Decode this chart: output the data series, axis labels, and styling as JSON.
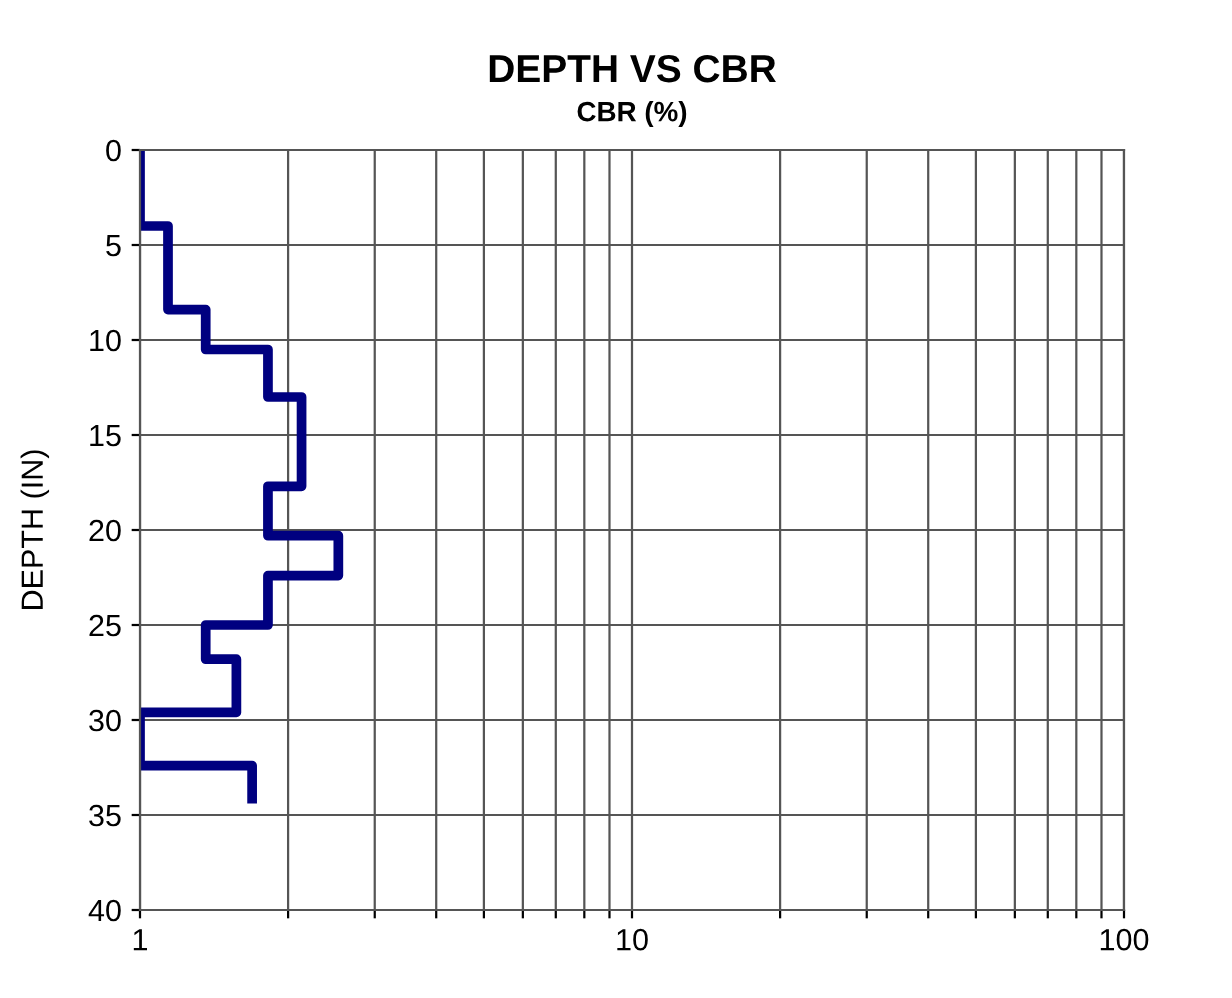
{
  "chart_data": {
    "type": "line",
    "title": "DEPTH VS CBR",
    "xlabel": "CBR (%)",
    "ylabel": "DEPTH (IN)",
    "log": "x",
    "grid": true,
    "marker": "none",
    "line_style": "solid",
    "xlim": [
      1,
      100
    ],
    "xticks": [
      1,
      {
        "value": 2,
        "label": null
      },
      {
        "value": 3,
        "label": null
      },
      {
        "value": 4,
        "label": null
      },
      {
        "value": 5,
        "label": null
      },
      {
        "value": 6,
        "label": null
      },
      {
        "value": 7,
        "label": null
      },
      {
        "value": 8,
        "label": null
      },
      {
        "value": 9,
        "label": null
      },
      10,
      {
        "value": 20,
        "label": null
      },
      {
        "value": 30,
        "label": null
      },
      {
        "value": 40,
        "label": null
      },
      {
        "value": 50,
        "label": null
      },
      {
        "value": 60,
        "label": null
      },
      {
        "value": 70,
        "label": null
      },
      {
        "value": 80,
        "label": null
      },
      {
        "value": 90,
        "label": null
      },
      100
    ],
    "ylim": [
      40,
      0
    ],
    "yticks": [
      0,
      5,
      10,
      15,
      20,
      25,
      30,
      35,
      40
    ],
    "series": [
      {
        "color": "#000080",
        "x": [
          1,
          1,
          1.14,
          1.14,
          1.36,
          1.36,
          1.82,
          1.82,
          2.13,
          2.13,
          1.82,
          1.82,
          2.53,
          2.53,
          1.82,
          1.82,
          1.36,
          1.36,
          1.57,
          1.57,
          1,
          1,
          1.69,
          1.69
        ],
        "values": [
          0,
          4,
          4,
          8.4,
          8.4,
          10.5,
          10.5,
          13,
          13,
          17.7,
          17.7,
          20.3,
          20.3,
          22.4,
          22.4,
          25,
          25,
          26.8,
          26.8,
          29.6,
          29.6,
          32.4,
          32.4,
          34.4
        ]
      }
    ]
  }
}
